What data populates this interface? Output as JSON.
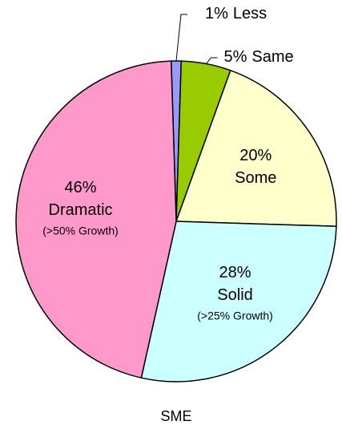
{
  "chart_data": {
    "type": "pie",
    "title": "SME",
    "categories": [
      "Less",
      "Same",
      "Some",
      "Solid",
      "Dramatic"
    ],
    "values": [
      1,
      5,
      20,
      28,
      46
    ],
    "value_labels": [
      "1%",
      "5%",
      "20%",
      "28%",
      "46%"
    ],
    "sublabels": [
      null,
      null,
      null,
      "(>25% Growth)",
      "(>50% Growth)"
    ],
    "colors": [
      "#9999ff",
      "#99cc00",
      "#ffffcc",
      "#ccffff",
      "#ff99cc"
    ]
  }
}
